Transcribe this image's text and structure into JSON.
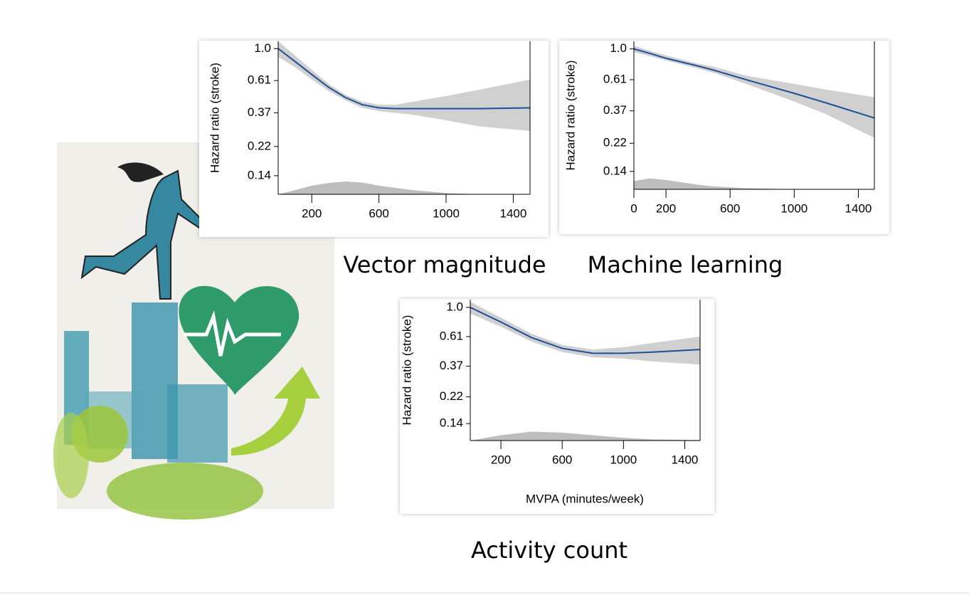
{
  "chart_data": [
    {
      "type": "line",
      "title": "Vector magnitude",
      "y_label": "Hazard ratio (stroke)",
      "log_y": true,
      "color": "#1f4e99",
      "band_color": "#d0d0d0",
      "density_color": "#bdbdbd",
      "x": [
        0,
        100,
        200,
        300,
        400,
        500,
        600,
        700,
        800,
        1000,
        1200,
        1500
      ],
      "values": [
        1.0,
        0.82,
        0.67,
        0.55,
        0.47,
        0.42,
        0.4,
        0.395,
        0.395,
        0.395,
        0.395,
        0.4
      ],
      "lower": [
        0.88,
        0.75,
        0.62,
        0.52,
        0.45,
        0.4,
        0.38,
        0.37,
        0.36,
        0.33,
        0.3,
        0.28
      ],
      "upper": [
        1.12,
        0.9,
        0.72,
        0.58,
        0.49,
        0.44,
        0.42,
        0.42,
        0.44,
        0.48,
        0.53,
        0.62
      ],
      "density": [
        0.105,
        0.112,
        0.12,
        0.125,
        0.128,
        0.126,
        0.12,
        0.116,
        0.112,
        0.107,
        0.105,
        0.105
      ],
      "xlim": [
        0,
        1500
      ],
      "xticks": [
        200,
        600,
        1000,
        1400
      ],
      "ylim": [
        0.105,
        1.12
      ],
      "yticks": [
        {
          "value": 1,
          "label": "1.0"
        },
        0.61,
        0.37,
        0.22,
        0.14
      ]
    },
    {
      "type": "line",
      "title": "Machine learning",
      "y_label": "Hazard ratio (stroke)",
      "log_y": true,
      "color": "#1f4e99",
      "band_color": "#d0d0d0",
      "density_color": "#bdbdbd",
      "x": [
        0,
        100,
        200,
        400,
        500,
        700,
        1000,
        1200,
        1500
      ],
      "values": [
        1.0,
        0.93,
        0.86,
        0.76,
        0.71,
        0.61,
        0.49,
        0.42,
        0.33
      ],
      "lower": [
        0.95,
        0.89,
        0.83,
        0.73,
        0.68,
        0.57,
        0.43,
        0.35,
        0.24
      ],
      "upper": [
        1.05,
        0.97,
        0.9,
        0.79,
        0.75,
        0.65,
        0.57,
        0.52,
        0.46
      ],
      "density": [
        0.12,
        0.125,
        0.122,
        0.113,
        0.11,
        0.107,
        0.105,
        0.105,
        0.105
      ],
      "xlim": [
        0,
        1500
      ],
      "xticks": [
        0,
        200,
        600,
        1000,
        1400
      ],
      "ylim": [
        0.105,
        1.13
      ],
      "yticks": [
        {
          "value": 1,
          "label": "1.0"
        },
        0.61,
        0.37,
        0.22,
        0.14
      ]
    },
    {
      "type": "line",
      "title": "Activity count",
      "y_label": "Hazard ratio (stroke)",
      "x_label": "MVPA (minutes/week)",
      "log_y": true,
      "color": "#1f4e99",
      "band_color": "#d0d0d0",
      "density_color": "#bdbdbd",
      "x": [
        0,
        200,
        400,
        600,
        800,
        1000,
        1200,
        1500
      ],
      "values": [
        1.0,
        0.78,
        0.6,
        0.5,
        0.46,
        0.46,
        0.47,
        0.49
      ],
      "lower": [
        0.9,
        0.72,
        0.56,
        0.47,
        0.43,
        0.42,
        0.4,
        0.38
      ],
      "upper": [
        1.1,
        0.84,
        0.64,
        0.53,
        0.49,
        0.51,
        0.55,
        0.61
      ],
      "density": [
        0.105,
        0.115,
        0.122,
        0.12,
        0.115,
        0.11,
        0.107,
        0.106
      ],
      "xlim": [
        0,
        1500
      ],
      "xticks": [
        200,
        600,
        1000,
        1400
      ],
      "ylim": [
        0.105,
        1.14
      ],
      "yticks": [
        {
          "value": 1,
          "label": "1.0"
        },
        0.61,
        0.37,
        0.22,
        0.14
      ]
    }
  ]
}
